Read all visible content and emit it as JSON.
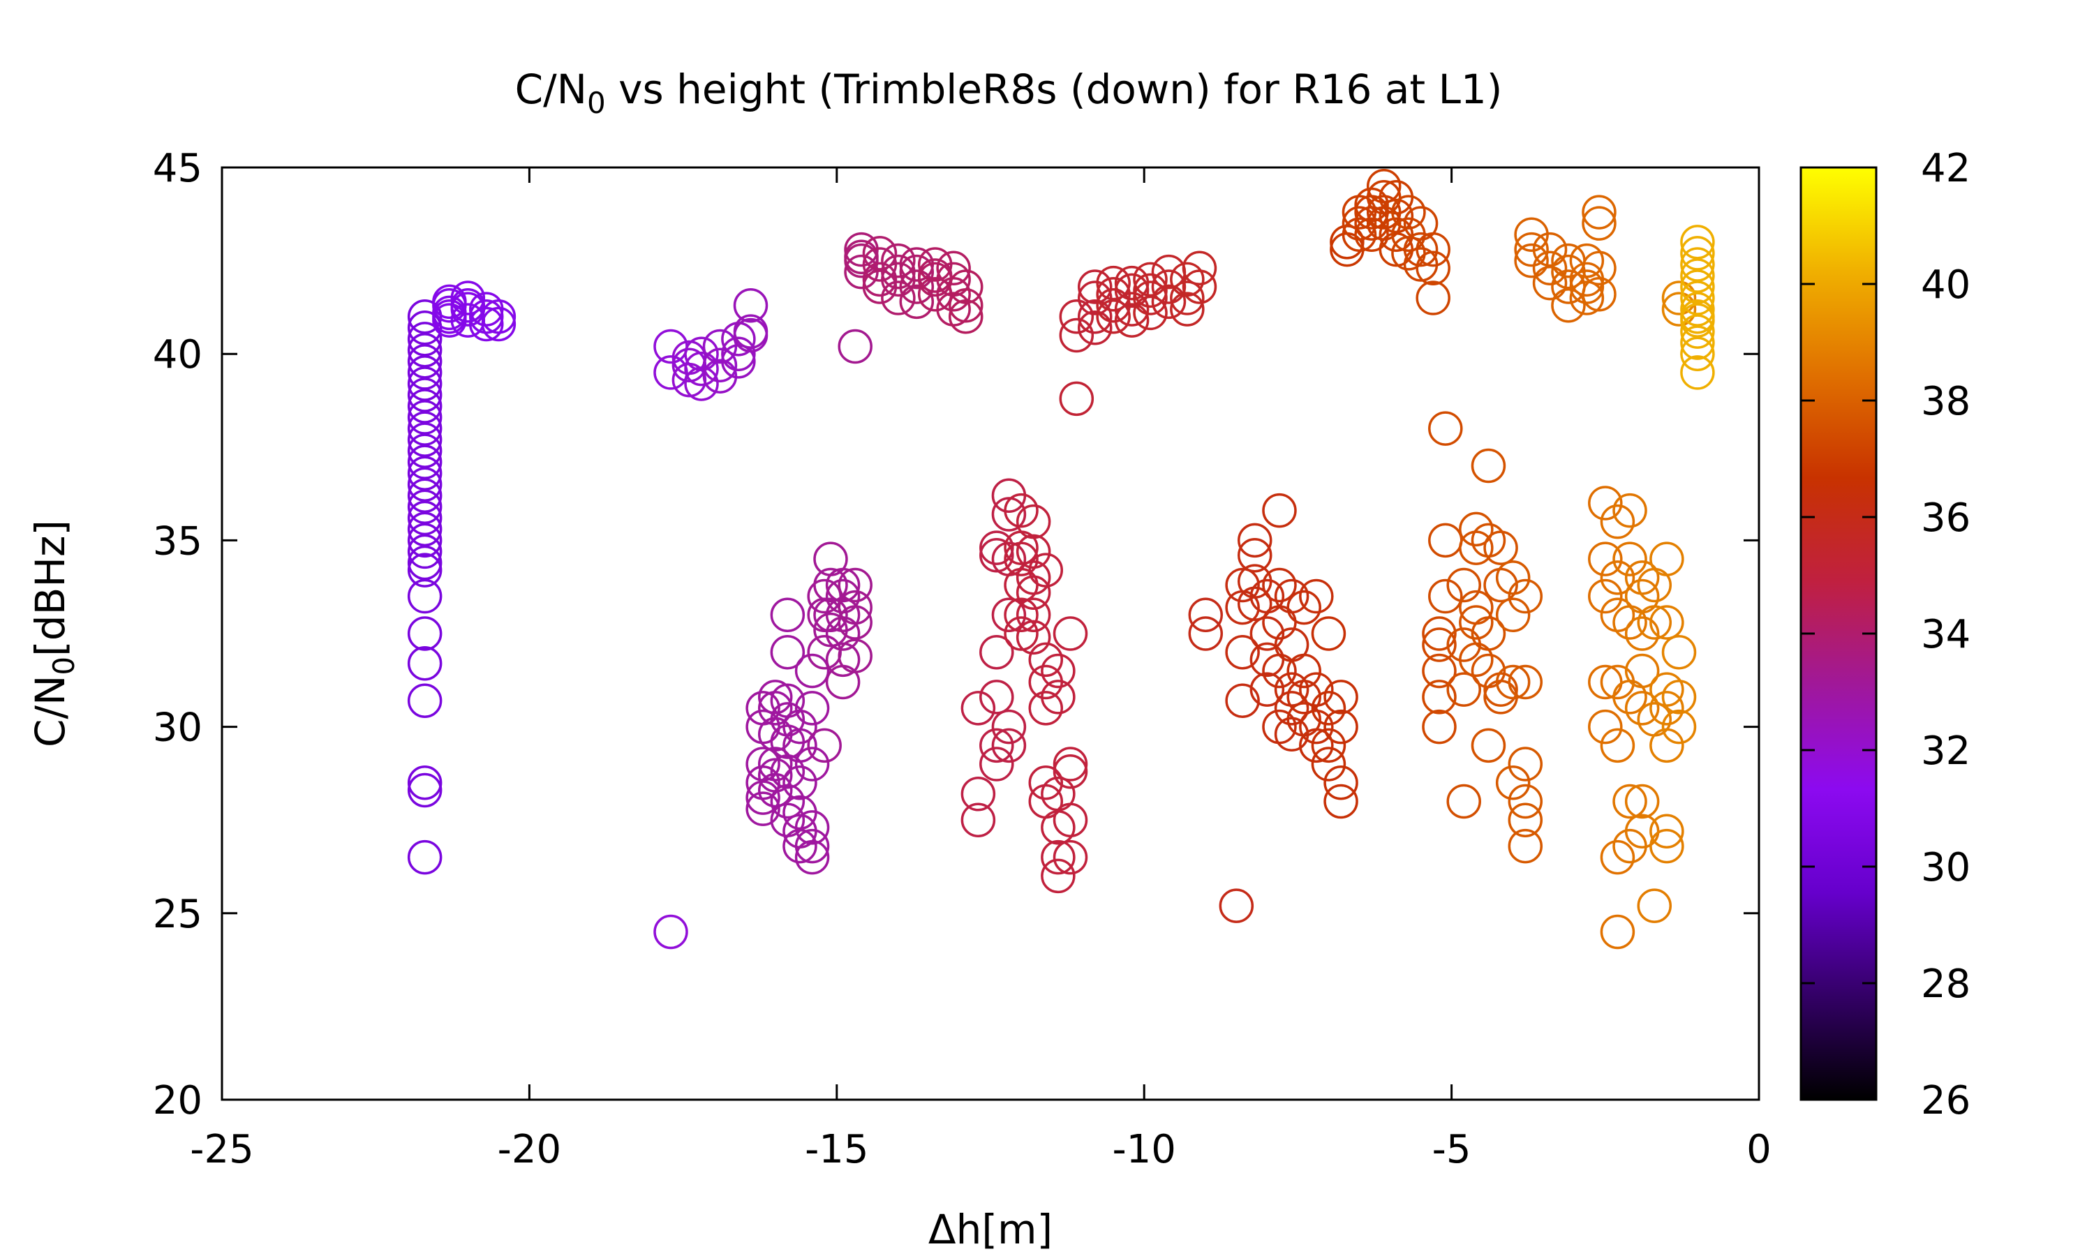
{
  "chart_data": {
    "type": "scatter",
    "title_main": "C/N",
    "title_sub": "0",
    "title_rest": " vs height (TrimbleR8s (down) for R16 at L1)",
    "xlabel": "Δh[m]",
    "ylabel_main": "C/N",
    "ylabel_sub": "0",
    "ylabel_rest": "[dBHz]",
    "xlim": [
      -25,
      0
    ],
    "ylim": [
      20,
      45
    ],
    "xticks": [
      -25,
      -20,
      -15,
      -10,
      -5,
      0
    ],
    "yticks": [
      20,
      25,
      30,
      35,
      40,
      45
    ],
    "xtick_labels": [
      "-25",
      "-20",
      "-15",
      "-10",
      "-5",
      "0"
    ],
    "ytick_labels": [
      "20",
      "25",
      "30",
      "35",
      "40",
      "45"
    ],
    "marker": "open-circle",
    "colorbar": {
      "range": [
        26,
        42
      ],
      "ticks": [
        26,
        28,
        30,
        32,
        34,
        36,
        38,
        40,
        42
      ],
      "tick_labels": [
        "26",
        "28",
        "30",
        "32",
        "34",
        "36",
        "38",
        "40",
        "42"
      ],
      "gradient": [
        "#000000",
        "#330066",
        "#6600cc",
        "#8c0af0",
        "#a0189a",
        "#c02040",
        "#c83200",
        "#e07000",
        "#f0b000",
        "#ffff00"
      ]
    },
    "clusters": [
      {
        "x": -21.7,
        "y": [
          41.0,
          40.7,
          40.4,
          40.1,
          39.8,
          39.5,
          39.2,
          38.9,
          38.6,
          38.3,
          38.0,
          37.7,
          37.4,
          37.1,
          36.8,
          36.5,
          36.2,
          35.9,
          35.6,
          35.3,
          35.0,
          34.7,
          34.4,
          34.2,
          33.5,
          32.5,
          31.7,
          30.7,
          28.5,
          28.3,
          26.5
        ],
        "c": 30.5
      },
      {
        "x": -21.3,
        "y": [
          41.3,
          41.0,
          41.4,
          41.1,
          40.9
        ],
        "c": 31.0
      },
      {
        "x": -21.0,
        "y": [
          41.2,
          41.5,
          40.9,
          41.3
        ],
        "c": 31.0
      },
      {
        "x": -20.7,
        "y": [
          41.0,
          40.8,
          41.2
        ],
        "c": 31.0
      },
      {
        "x": -20.5,
        "y": [
          41.0,
          40.8
        ],
        "c": 31.0
      },
      {
        "x": -17.7,
        "y": [
          40.2,
          39.5,
          24.5
        ],
        "c": 31.8
      },
      {
        "x": -17.4,
        "y": [
          39.7,
          39.3,
          39.9
        ],
        "c": 32.0
      },
      {
        "x": -17.2,
        "y": [
          40.0,
          39.2,
          39.6
        ],
        "c": 32.0
      },
      {
        "x": -16.9,
        "y": [
          40.2,
          39.7,
          39.4
        ],
        "c": 32.2
      },
      {
        "x": -16.6,
        "y": [
          40.4,
          40.0,
          39.8
        ],
        "c": 32.3
      },
      {
        "x": -16.4,
        "y": [
          40.6,
          40.5,
          41.3
        ],
        "c": 32.5
      },
      {
        "x": -16.2,
        "y": [
          30.5,
          29.0,
          28.5,
          28.1,
          27.8,
          30.0
        ],
        "c": 33.0
      },
      {
        "x": -16.0,
        "y": [
          30.8,
          29.8,
          29.0,
          28.7,
          28.3,
          30.5
        ],
        "c": 33.0
      },
      {
        "x": -15.8,
        "y": [
          33.0,
          32.0,
          30.7,
          30.2,
          29.6,
          28.8,
          28.0,
          27.5
        ],
        "c": 33.0
      },
      {
        "x": -15.6,
        "y": [
          30.0,
          29.5,
          28.5,
          27.7,
          27.2,
          26.8
        ],
        "c": 33.0
      },
      {
        "x": -15.4,
        "y": [
          30.5,
          29.0,
          27.3,
          26.8,
          26.5,
          31.5
        ],
        "c": 33.0
      },
      {
        "x": -15.2,
        "y": [
          33.0,
          32.0,
          29.5,
          33.5
        ],
        "c": 33.2
      },
      {
        "x": -15.1,
        "y": [
          34.5,
          33.8,
          33.0,
          32.6
        ],
        "c": 33.2
      },
      {
        "x": -14.9,
        "y": [
          33.5,
          33.0,
          32.5,
          31.8,
          31.2,
          33.8
        ],
        "c": 33.2
      },
      {
        "x": -14.7,
        "y": [
          33.8,
          33.2,
          32.8,
          31.9,
          40.2
        ],
        "c": 33.3
      },
      {
        "x": -14.6,
        "y": [
          42.8,
          42.5,
          42.2,
          42.6
        ],
        "c": 33.8
      },
      {
        "x": -14.3,
        "y": [
          42.4,
          42.0,
          41.8,
          42.7
        ],
        "c": 34.0
      },
      {
        "x": -14.0,
        "y": [
          42.5,
          42.0,
          41.5,
          42.2
        ],
        "c": 34.0
      },
      {
        "x": -13.7,
        "y": [
          42.4,
          41.8,
          41.4,
          42.2
        ],
        "c": 34.0
      },
      {
        "x": -13.4,
        "y": [
          42.4,
          42.0,
          41.6,
          42.1
        ],
        "c": 34.2
      },
      {
        "x": -13.1,
        "y": [
          42.0,
          41.6,
          41.2,
          42.3
        ],
        "c": 34.2
      },
      {
        "x": -12.9,
        "y": [
          41.8,
          41.3,
          41.0
        ],
        "c": 34.3
      },
      {
        "x": -12.7,
        "y": [
          30.5,
          28.2,
          27.5
        ],
        "c": 34.8
      },
      {
        "x": -12.4,
        "y": [
          34.8,
          32.0,
          30.8,
          29.5,
          29.0,
          34.6
        ],
        "c": 34.8
      },
      {
        "x": -12.2,
        "y": [
          36.2,
          35.7,
          34.5,
          33.0,
          30.0,
          29.5
        ],
        "c": 34.8
      },
      {
        "x": -12.0,
        "y": [
          35.8,
          34.8,
          33.8,
          33.0,
          32.5,
          34.5
        ],
        "c": 35.0
      },
      {
        "x": -11.8,
        "y": [
          35.5,
          34.7,
          34.0,
          33.6,
          33.0,
          32.4
        ],
        "c": 35.0
      },
      {
        "x": -11.6,
        "y": [
          34.2,
          31.8,
          31.2,
          30.5,
          28.5,
          28.0
        ],
        "c": 35.0
      },
      {
        "x": -11.4,
        "y": [
          31.5,
          30.8,
          28.2,
          27.3,
          26.0,
          26.5
        ],
        "c": 35.0
      },
      {
        "x": -11.2,
        "y": [
          32.5,
          29.0,
          28.8,
          27.5,
          26.5
        ],
        "c": 35.0
      },
      {
        "x": -11.1,
        "y": [
          41.0,
          40.5,
          38.8
        ],
        "c": 35.2
      },
      {
        "x": -10.8,
        "y": [
          41.5,
          41.0,
          40.7,
          41.8
        ],
        "c": 35.2
      },
      {
        "x": -10.5,
        "y": [
          41.9,
          41.3,
          41.0,
          41.6
        ],
        "c": 35.4
      },
      {
        "x": -10.2,
        "y": [
          41.7,
          41.2,
          40.9,
          41.9
        ],
        "c": 35.4
      },
      {
        "x": -9.9,
        "y": [
          42.0,
          41.5,
          41.1,
          41.7
        ],
        "c": 35.5
      },
      {
        "x": -9.6,
        "y": [
          42.2,
          41.8,
          41.4
        ],
        "c": 35.5
      },
      {
        "x": -9.3,
        "y": [
          42.0,
          41.5,
          41.2
        ],
        "c": 35.6
      },
      {
        "x": -9.1,
        "y": [
          42.3,
          41.8
        ],
        "c": 35.6
      },
      {
        "x": -9.0,
        "y": [
          33.0,
          32.5
        ],
        "c": 36.0
      },
      {
        "x": -8.5,
        "y": [
          25.2
        ],
        "c": 36.0
      },
      {
        "x": -8.4,
        "y": [
          33.8,
          33.2,
          32.0,
          30.7
        ],
        "c": 36.2
      },
      {
        "x": -8.2,
        "y": [
          35.0,
          34.6,
          33.9,
          33.3
        ],
        "c": 36.2
      },
      {
        "x": -8.0,
        "y": [
          33.5,
          32.5,
          31.8,
          31.0
        ],
        "c": 36.2
      },
      {
        "x": -7.8,
        "y": [
          35.8,
          33.8,
          32.8,
          31.5,
          30.0
        ],
        "c": 36.3
      },
      {
        "x": -7.6,
        "y": [
          33.5,
          32.2,
          31.0,
          30.5,
          29.8
        ],
        "c": 36.3
      },
      {
        "x": -7.4,
        "y": [
          33.2,
          31.5,
          30.8,
          30.2
        ],
        "c": 36.4
      },
      {
        "x": -7.2,
        "y": [
          33.5,
          31.0,
          30.0,
          29.5
        ],
        "c": 36.4
      },
      {
        "x": -7.0,
        "y": [
          32.5,
          30.5,
          29.5,
          29.0
        ],
        "c": 36.5
      },
      {
        "x": -6.8,
        "y": [
          30.8,
          30.0,
          28.5,
          28.0
        ],
        "c": 36.5
      },
      {
        "x": -6.7,
        "y": [
          43.0,
          42.8
        ],
        "c": 36.8
      },
      {
        "x": -6.5,
        "y": [
          43.8,
          43.2,
          43.5
        ],
        "c": 37.0
      },
      {
        "x": -6.3,
        "y": [
          44.0,
          43.5,
          43.8,
          43.2
        ],
        "c": 37.0
      },
      {
        "x": -6.1,
        "y": [
          44.5,
          44.2,
          43.8,
          43.5
        ],
        "c": 37.0
      },
      {
        "x": -5.9,
        "y": [
          44.2,
          43.7,
          43.2,
          42.8
        ],
        "c": 37.0
      },
      {
        "x": -5.7,
        "y": [
          43.8,
          43.2,
          42.7
        ],
        "c": 37.2
      },
      {
        "x": -5.5,
        "y": [
          43.5,
          42.8,
          42.4
        ],
        "c": 37.2
      },
      {
        "x": -5.3,
        "y": [
          42.8,
          42.3,
          41.5
        ],
        "c": 37.2
      },
      {
        "x": -5.2,
        "y": [
          32.5,
          31.5,
          30.8,
          30.0,
          32.2
        ],
        "c": 37.3
      },
      {
        "x": -5.1,
        "y": [
          38.0,
          35.0,
          33.5
        ],
        "c": 37.4
      },
      {
        "x": -4.8,
        "y": [
          33.8,
          32.2,
          31.0,
          28.0
        ],
        "c": 37.5
      },
      {
        "x": -4.6,
        "y": [
          35.3,
          34.8,
          33.2,
          32.8,
          31.8
        ],
        "c": 37.6
      },
      {
        "x": -4.4,
        "y": [
          37.0,
          35.0,
          32.5,
          31.5,
          29.5
        ],
        "c": 37.6
      },
      {
        "x": -4.2,
        "y": [
          34.8,
          33.8,
          31.0,
          30.8
        ],
        "c": 37.6
      },
      {
        "x": -4.0,
        "y": [
          34.0,
          33.0,
          31.2,
          28.5
        ],
        "c": 37.8
      },
      {
        "x": -3.8,
        "y": [
          33.5,
          31.2,
          29.0,
          28.0,
          27.5,
          26.8
        ],
        "c": 37.8
      },
      {
        "x": -3.7,
        "y": [
          43.2,
          42.5,
          42.8
        ],
        "c": 38.0
      },
      {
        "x": -3.4,
        "y": [
          42.8,
          42.3,
          41.9
        ],
        "c": 38.0
      },
      {
        "x": -3.1,
        "y": [
          42.5,
          41.8,
          41.3,
          42.2
        ],
        "c": 38.1
      },
      {
        "x": -2.8,
        "y": [
          42.5,
          42.0,
          41.5,
          41.8
        ],
        "c": 38.2
      },
      {
        "x": -2.6,
        "y": [
          43.5,
          43.8,
          42.3,
          41.6
        ],
        "c": 38.2
      },
      {
        "x": -2.5,
        "y": [
          36.0,
          34.5,
          33.5,
          31.2,
          30.0
        ],
        "c": 38.4
      },
      {
        "x": -2.3,
        "y": [
          35.5,
          34.0,
          33.0,
          31.2,
          29.5,
          26.5,
          24.5
        ],
        "c": 38.5
      },
      {
        "x": -2.1,
        "y": [
          35.8,
          34.5,
          32.8,
          30.8,
          28.0,
          26.8
        ],
        "c": 38.6
      },
      {
        "x": -1.9,
        "y": [
          34.0,
          33.5,
          32.5,
          31.5,
          30.5,
          27.2,
          28.0
        ],
        "c": 38.7
      },
      {
        "x": -1.7,
        "y": [
          33.8,
          32.8,
          30.2,
          25.2
        ],
        "c": 38.8
      },
      {
        "x": -1.5,
        "y": [
          34.5,
          32.8,
          31.0,
          30.5,
          29.5,
          27.2,
          26.8
        ],
        "c": 38.9
      },
      {
        "x": -1.3,
        "y": [
          32.0,
          30.8,
          30.0,
          41.5,
          41.2
        ],
        "c": 39.0
      },
      {
        "x": -1.0,
        "y": [
          43.0,
          42.7,
          42.4,
          42.1,
          41.8,
          41.5,
          41.2,
          40.9,
          40.6,
          40.3,
          40.0,
          39.5,
          41.0
        ],
        "c": 40.2
      }
    ]
  }
}
